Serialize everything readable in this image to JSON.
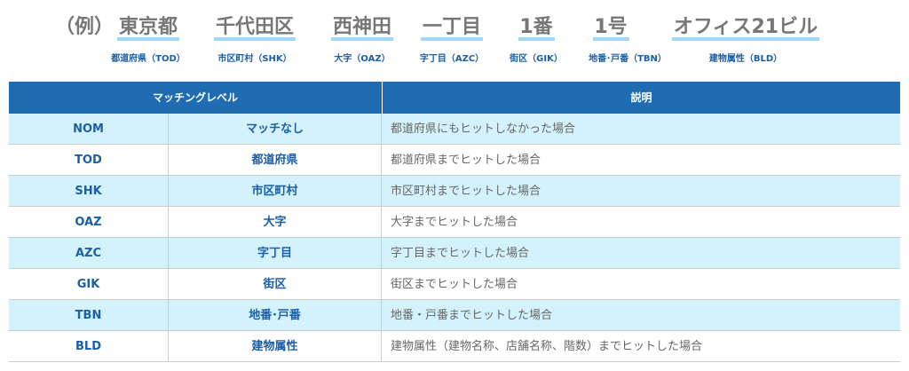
{
  "example": {
    "label": "（例）",
    "items": [
      {
        "text": "東京都",
        "code": "都道府県（TOD）"
      },
      {
        "text": "千代田区",
        "code": "市区町村（SHK）"
      },
      {
        "text": "西神田",
        "code": "大字（OAZ）"
      },
      {
        "text": "一丁目",
        "code": "字丁目（AZC）"
      },
      {
        "text": "1番",
        "code": "街区（GIK）"
      },
      {
        "text": "1号",
        "code": "地番･戸番（TBN）"
      },
      {
        "text": "オフィス21ビル",
        "code": "建物属性（BLD）"
      }
    ]
  },
  "table": {
    "header": [
      "マッチングレベル",
      "説明"
    ],
    "rows": [
      [
        "NOM",
        "マッチなし",
        "都道府県にもヒットしなかった場合"
      ],
      [
        "TOD",
        "都道府県",
        "都道府県までヒットした場合"
      ],
      [
        "SHK",
        "市区町村",
        "市区町村までヒットした場合"
      ],
      [
        "OAZ",
        "大字",
        "大字までヒットした場合"
      ],
      [
        "AZC",
        "字丁目",
        "字丁目までヒットした場合"
      ],
      [
        "GIK",
        "街区",
        "街区までヒットした場合"
      ],
      [
        "TBN",
        "地番･戸番",
        "地番・戸番までヒットした場合"
      ],
      [
        "BLD",
        "建物属性",
        "建物属性（建物名称、店舗名称、階数）までヒットした場合"
      ]
    ]
  }
}
